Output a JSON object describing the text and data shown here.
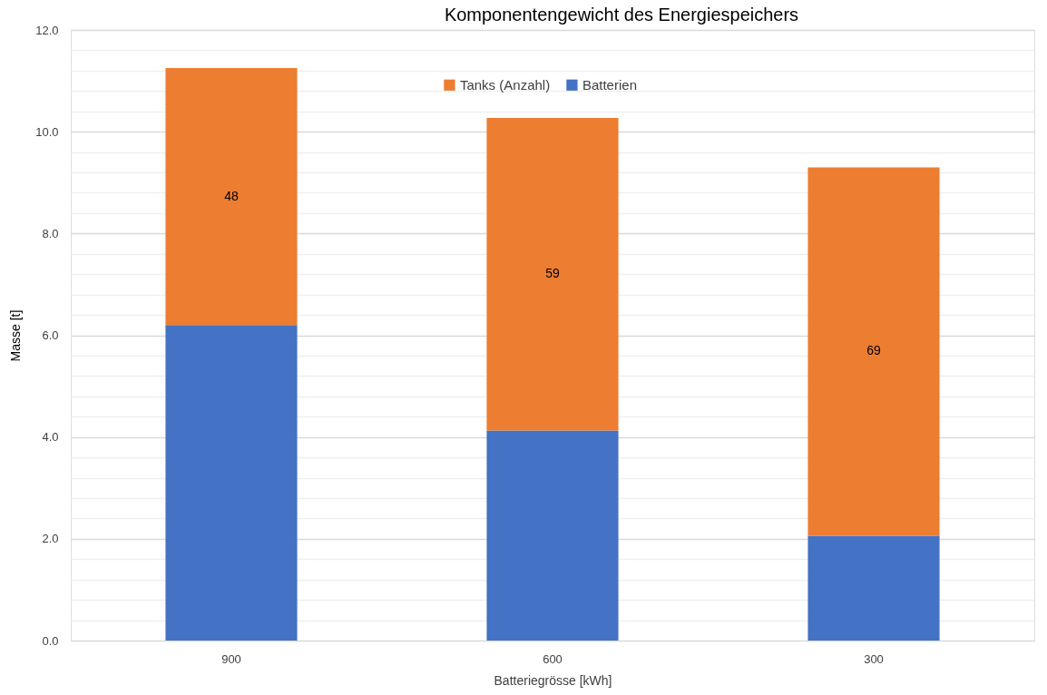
{
  "chart_data": {
    "type": "bar",
    "title": "Komponentengewicht des Energiespeichers",
    "xlabel": "Batteriegrösse [kWh]",
    "ylabel": "Masse [t]",
    "categories": [
      "900",
      "600",
      "300"
    ],
    "series": [
      {
        "name": "Batterien",
        "color": "#4472c4",
        "values": [
          6.2,
          4.13,
          2.06
        ]
      },
      {
        "name": "Tanks (Anzahl)",
        "color": "#ed7d31",
        "values": [
          5.05,
          6.14,
          7.24
        ]
      }
    ],
    "annotations": [
      "48",
      "59",
      "69"
    ],
    "stacked": true,
    "ylim": [
      0,
      12
    ],
    "yticks": [
      {
        "value": 0,
        "label": "0.0"
      },
      {
        "value": 0.4,
        "label": null
      },
      {
        "value": 0.8,
        "label": null
      },
      {
        "value": 1.2,
        "label": null
      },
      {
        "value": 1.6,
        "label": null
      },
      {
        "value": 2,
        "label": "2.0"
      },
      {
        "value": 2.4,
        "label": null
      },
      {
        "value": 2.8,
        "label": null
      },
      {
        "value": 3.2,
        "label": null
      },
      {
        "value": 3.6,
        "label": null
      },
      {
        "value": 4,
        "label": "4.0"
      },
      {
        "value": 4.4,
        "label": null
      },
      {
        "value": 4.8,
        "label": null
      },
      {
        "value": 5.2,
        "label": null
      },
      {
        "value": 5.6,
        "label": null
      },
      {
        "value": 6,
        "label": "6.0"
      },
      {
        "value": 6.4,
        "label": null
      },
      {
        "value": 6.8,
        "label": null
      },
      {
        "value": 7.2,
        "label": null
      },
      {
        "value": 7.6,
        "label": null
      },
      {
        "value": 8,
        "label": "8.0"
      },
      {
        "value": 8.4,
        "label": null
      },
      {
        "value": 8.8,
        "label": null
      },
      {
        "value": 9.2,
        "label": null
      },
      {
        "value": 9.6,
        "label": null
      },
      {
        "value": 10,
        "label": "10.0"
      },
      {
        "value": 10.4,
        "label": null
      },
      {
        "value": 10.8,
        "label": null
      },
      {
        "value": 11.2,
        "label": null
      },
      {
        "value": 11.6,
        "label": null
      },
      {
        "value": 12,
        "label": "12.0"
      }
    ],
    "grid": "y",
    "legend": "top"
  }
}
